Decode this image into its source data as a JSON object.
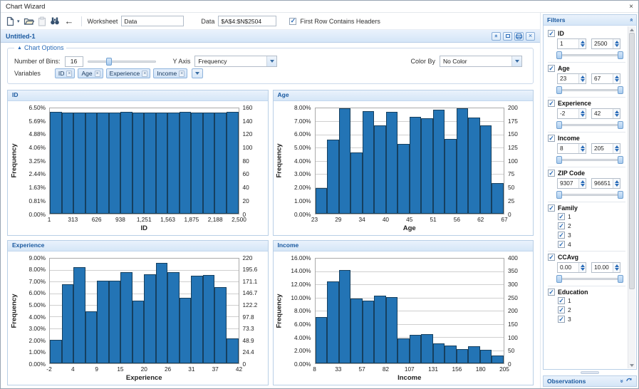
{
  "window": {
    "title": "Chart Wizard"
  },
  "icons": {
    "close": "×",
    "close_small": "×",
    "check": "✓",
    "back_arrow": "←",
    "caret_down": "▾",
    "triangle_up": "▲",
    "chevron_double": "»"
  },
  "toolbar": {
    "worksheet_label": "Worksheet",
    "worksheet_value": "Data",
    "data_label": "Data",
    "data_value": "$A$4:$N$2504",
    "first_row_label": "First Row Contains Headers",
    "first_row_checked": true
  },
  "tab": {
    "title": "Untitled-1"
  },
  "chart_options": {
    "legend": "Chart Options",
    "bins_label": "Number of Bins:",
    "bins_value": "16",
    "bins_slider_pos_pct": 28,
    "yaxis_label": "Y Axis",
    "yaxis_value": "Frequency",
    "colorby_label": "Color By",
    "colorby_value": "No Color",
    "variables_label": "Variables",
    "variables": [
      "ID",
      "Age",
      "Experience",
      "Income"
    ]
  },
  "chart_data": [
    {
      "type": "bar",
      "title": "ID",
      "xlabel": "ID",
      "ylabel": "Frequency",
      "ylim_pct": [
        0,
        6.5
      ],
      "y_left_ticks": [
        "6.50%",
        "5.69%",
        "4.88%",
        "4.06%",
        "3.25%",
        "2.44%",
        "1.63%",
        "0.81%",
        "0.00%"
      ],
      "y_right_ticks": [
        "160",
        "140",
        "120",
        "100",
        "80",
        "60",
        "40",
        "20",
        "0"
      ],
      "x_ticks": [
        "1",
        "313",
        "626",
        "938",
        "1,251",
        "1,563",
        "1,875",
        "2,188",
        "2,500"
      ],
      "values_pct": [
        6.28,
        6.24,
        6.24,
        6.24,
        6.24,
        6.24,
        6.28,
        6.24,
        6.24,
        6.24,
        6.24,
        6.28,
        6.24,
        6.24,
        6.24,
        6.28
      ]
    },
    {
      "type": "bar",
      "title": "Age",
      "xlabel": "Age",
      "ylabel": "Frequency",
      "ylim_pct": [
        0,
        8
      ],
      "y_left_ticks": [
        "8.00%",
        "7.00%",
        "6.00%",
        "5.00%",
        "4.00%",
        "3.00%",
        "2.00%",
        "1.00%",
        "0.00%"
      ],
      "y_right_ticks": [
        "200",
        "175",
        "150",
        "125",
        "100",
        "75",
        "50",
        "25",
        "0"
      ],
      "x_ticks": [
        "23",
        "29",
        "34",
        "40",
        "45",
        "51",
        "56",
        "62",
        "67"
      ],
      "values_pct": [
        1.95,
        5.6,
        8.0,
        4.65,
        7.8,
        6.7,
        7.75,
        5.3,
        7.35,
        7.25,
        7.9,
        5.65,
        8.0,
        7.3,
        6.7,
        2.3
      ]
    },
    {
      "type": "bar",
      "title": "Experience",
      "xlabel": "Experience",
      "ylabel": "Frequency",
      "ylim_pct": [
        0,
        9
      ],
      "y_left_ticks": [
        "9.00%",
        "8.00%",
        "7.00%",
        "6.00%",
        "5.00%",
        "4.00%",
        "3.00%",
        "2.00%",
        "1.00%",
        "0.00%"
      ],
      "y_right_ticks": [
        "220",
        "195.6",
        "171.1",
        "146.7",
        "122.2",
        "97.8",
        "73.3",
        "48.9",
        "24.4",
        "0"
      ],
      "x_ticks": [
        "-2",
        "4",
        "9",
        "15",
        "20",
        "26",
        "31",
        "37",
        "42"
      ],
      "values_pct": [
        2.0,
        6.75,
        8.25,
        4.45,
        7.1,
        7.1,
        7.8,
        5.4,
        7.6,
        8.6,
        7.8,
        5.6,
        7.5,
        7.55,
        6.5,
        2.15
      ]
    },
    {
      "type": "bar",
      "title": "Income",
      "xlabel": "Income",
      "ylabel": "Frequency",
      "ylim_pct": [
        0,
        16
      ],
      "y_left_ticks": [
        "16.00%",
        "14.00%",
        "12.00%",
        "10.00%",
        "8.00%",
        "6.00%",
        "4.00%",
        "2.00%",
        "0.00%"
      ],
      "y_right_ticks": [
        "400",
        "350",
        "300",
        "250",
        "200",
        "150",
        "100",
        "50",
        "0"
      ],
      "x_ticks": [
        "8",
        "33",
        "57",
        "82",
        "107",
        "131",
        "156",
        "180",
        "205"
      ],
      "values_pct": [
        7.1,
        12.45,
        14.25,
        9.9,
        9.5,
        10.3,
        10.05,
        3.8,
        4.35,
        4.5,
        3.05,
        2.7,
        2.15,
        2.65,
        2.1,
        1.2
      ]
    }
  ],
  "filters": {
    "title": "Filters",
    "items": [
      {
        "label": "ID",
        "checked": true,
        "type": "range",
        "min": "1",
        "max": "2500"
      },
      {
        "label": "Age",
        "checked": true,
        "type": "range",
        "min": "23",
        "max": "67"
      },
      {
        "label": "Experience",
        "checked": true,
        "type": "range",
        "min": "-2",
        "max": "42"
      },
      {
        "label": "Income",
        "checked": true,
        "type": "range",
        "min": "8",
        "max": "205"
      },
      {
        "label": "ZIP Code",
        "checked": true,
        "type": "range",
        "min": "9307",
        "max": "96651"
      },
      {
        "label": "Family",
        "checked": true,
        "type": "options",
        "options": [
          "1",
          "2",
          "3",
          "4"
        ]
      },
      {
        "label": "CCAvg",
        "checked": true,
        "type": "range",
        "min": "0.00",
        "max": "10.00"
      },
      {
        "label": "Education",
        "checked": true,
        "type": "options",
        "options": [
          "1",
          "2",
          "3"
        ]
      }
    ]
  },
  "observations": {
    "title": "Observations"
  },
  "colors": {
    "bar_fill": "#2374b5",
    "bar_border": "#16405f",
    "accent": "#2b6cb8",
    "header_text": "#1b5aa0"
  }
}
